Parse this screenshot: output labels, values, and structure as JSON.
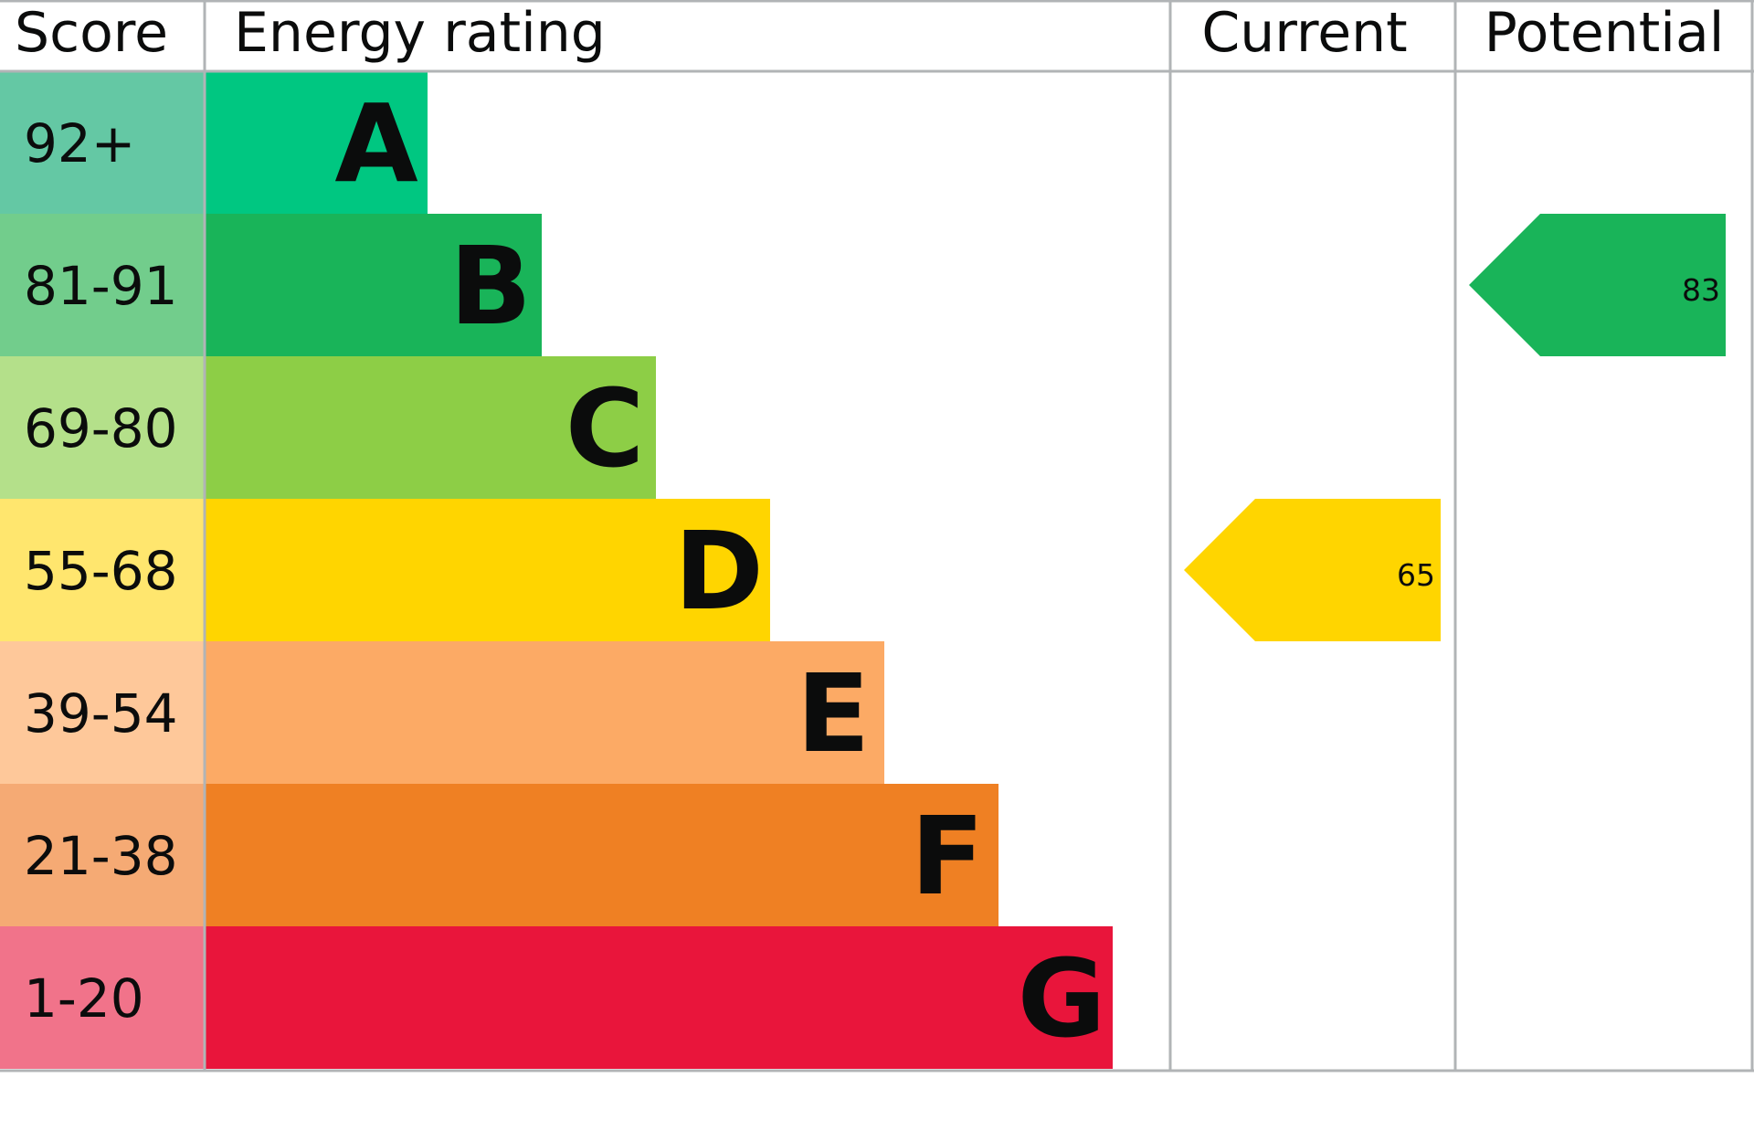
{
  "chart_data": {
    "type": "bar",
    "headers": {
      "score": "Score",
      "rating": "Energy rating",
      "current": "Current",
      "potential": "Potential"
    },
    "bands": [
      {
        "letter": "A",
        "range": "92+",
        "bar_color": "#00c781",
        "score_color": "#64c8a4"
      },
      {
        "letter": "B",
        "range": "81-91",
        "bar_color": "#19b459",
        "score_color": "#72cd8c"
      },
      {
        "letter": "C",
        "range": "69-80",
        "bar_color": "#8dce46",
        "score_color": "#b4e08a"
      },
      {
        "letter": "D",
        "range": "55-68",
        "bar_color": "#ffd500",
        "score_color": "#ffe66e"
      },
      {
        "letter": "E",
        "range": "39-54",
        "bar_color": "#fcaa65",
        "score_color": "#fec89a"
      },
      {
        "letter": "F",
        "range": "21-38",
        "bar_color": "#ef8023",
        "score_color": "#f5aa74"
      },
      {
        "letter": "G",
        "range": "1-20",
        "bar_color": "#e9153b",
        "score_color": "#f1738a"
      }
    ],
    "current": {
      "value": "65",
      "band": "D",
      "color": "#ffd500"
    },
    "potential": {
      "value": "83",
      "band": "B",
      "color": "#19b459"
    },
    "grid_color": "#b1b4b6"
  }
}
